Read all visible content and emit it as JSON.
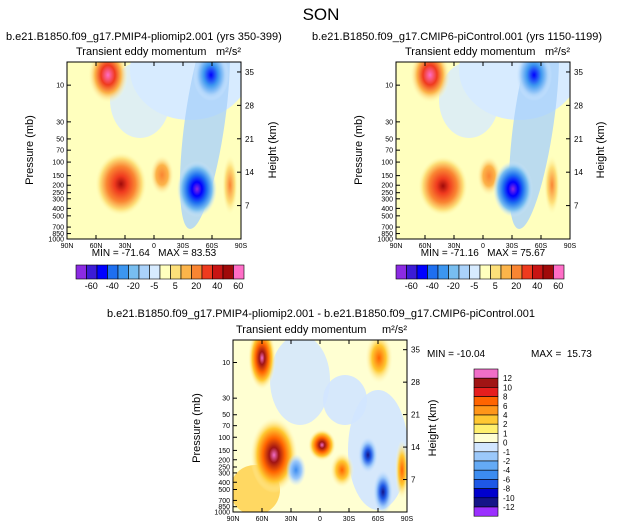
{
  "figure_title": "SON",
  "chart_data": [
    {
      "type": "heatmap",
      "case_title": "b.e21.B1850.f09_g17.PMIP4-pliomip2.001 (yrs 350-399)",
      "title_left": "Transient eddy momentum",
      "title_right": "m²/s²",
      "ylabel": "Pressure (mb)",
      "ylabel_right": "Height (km)",
      "x_ticks": [
        "90N",
        "60N",
        "30N",
        "0",
        "30S",
        "60S",
        "90S"
      ],
      "y_ticks": [
        "10",
        "30",
        "50",
        "70",
        "100",
        "150",
        "200",
        "250",
        "300",
        "400",
        "500",
        "700",
        "850",
        "1000"
      ],
      "y_ticks_right": [
        "35",
        "28",
        "21",
        "14",
        "7"
      ],
      "stats": "MIN = -71.64   MAX = 83.53",
      "min": -71.64,
      "max": 83.53,
      "colorbar_ticks": [
        "-60",
        "-40",
        "-20",
        "-5",
        "5",
        "20",
        "40",
        "60"
      ],
      "xlim": [
        90,
        -90
      ],
      "ylim_mb": [
        1000,
        5
      ],
      "features": [
        {
          "lat": 50,
          "p": 10,
          "value": 80
        },
        {
          "lat": 40,
          "p": 200,
          "value": 75
        },
        {
          "lat": 5,
          "p": 180,
          "value": 25
        },
        {
          "lat": -40,
          "p": 250,
          "value": -70
        },
        {
          "lat": -45,
          "p": 10,
          "value": -60
        },
        {
          "lat": -70,
          "p": 200,
          "value": 20
        }
      ]
    },
    {
      "type": "heatmap",
      "case_title": "b.e21.B1850.f09_g17.CMIP6-piControl.001 (yrs 1150-1199)",
      "title_left": "Transient eddy momentum",
      "title_right": "m²/s²",
      "ylabel": "Pressure (mb)",
      "ylabel_right": "Height (km)",
      "x_ticks": [
        "90N",
        "60N",
        "30N",
        "0",
        "30S",
        "60S",
        "90S"
      ],
      "y_ticks": [
        "10",
        "30",
        "50",
        "70",
        "100",
        "150",
        "200",
        "250",
        "300",
        "400",
        "500",
        "700",
        "850",
        "1000"
      ],
      "y_ticks_right": [
        "35",
        "28",
        "21",
        "14",
        "7"
      ],
      "stats": "MIN = -71.16   MAX = 75.67",
      "min": -71.16,
      "max": 75.67,
      "colorbar_ticks": [
        "-60",
        "-40",
        "-20",
        "-5",
        "5",
        "20",
        "40",
        "60"
      ],
      "xlim": [
        90,
        -90
      ],
      "ylim_mb": [
        1000,
        5
      ],
      "features": [
        {
          "lat": 55,
          "p": 10,
          "value": 70
        },
        {
          "lat": 40,
          "p": 200,
          "value": 70
        },
        {
          "lat": 5,
          "p": 180,
          "value": 25
        },
        {
          "lat": -40,
          "p": 250,
          "value": -65
        },
        {
          "lat": -45,
          "p": 10,
          "value": -55
        },
        {
          "lat": -70,
          "p": 200,
          "value": 20
        }
      ]
    },
    {
      "type": "heatmap",
      "case_title": "b.e21.B1850.f09_g17.PMIP4-pliomip2.001 - b.e21.B1850.f09_g17.CMIP6-piControl.001",
      "title_left": "Transient eddy momentum",
      "title_right": "m²/s²",
      "ylabel": "Pressure (mb)",
      "ylabel_right": "Height (km)",
      "x_ticks": [
        "90N",
        "60N",
        "30N",
        "0",
        "30S",
        "60S",
        "90S"
      ],
      "y_ticks": [
        "10",
        "30",
        "50",
        "70",
        "100",
        "150",
        "200",
        "250",
        "300",
        "400",
        "500",
        "700",
        "850",
        "1000"
      ],
      "y_ticks_right": [
        "35",
        "28",
        "21",
        "14",
        "7"
      ],
      "stats_min": "MIN = -10.04",
      "stats_max": "MAX =  15.73",
      "min": -10.04,
      "max": 15.73,
      "colorbar_ticks": [
        "12",
        "10",
        "8",
        "6",
        "4",
        "2",
        "1",
        "0",
        "-1",
        "-2",
        "-4",
        "-6",
        "-8",
        "-10",
        "-12"
      ],
      "xlim": [
        90,
        -90
      ],
      "ylim_mb": [
        1000,
        5
      ],
      "features": [
        {
          "lat": 60,
          "p": 10,
          "value": 12
        },
        {
          "lat": 45,
          "p": 200,
          "value": 13
        },
        {
          "lat": 0,
          "p": 150,
          "value": 8
        },
        {
          "lat": -20,
          "p": 300,
          "value": 6
        },
        {
          "lat": -45,
          "p": 200,
          "value": -6
        },
        {
          "lat": -60,
          "p": 600,
          "value": -8
        },
        {
          "lat": -70,
          "p": 10,
          "value": 6
        }
      ]
    }
  ],
  "colors": {
    "abs_palette": [
      "#8b2be2",
      "#3c1bd6",
      "#0000ff",
      "#1e6ff0",
      "#3c96f0",
      "#78bef0",
      "#aad2fa",
      "#d7ebff",
      "#ffffbe",
      "#fde07a",
      "#fcb44a",
      "#fa8532",
      "#ef3a1e",
      "#c81414",
      "#a00a0a",
      "#ff6ec7"
    ],
    "diff_palette": [
      "#9b30ff",
      "#141488",
      "#0000cd",
      "#1e58e6",
      "#3c8cf0",
      "#64aaf5",
      "#9bc8fa",
      "#d2e6ff",
      "#ffffd2",
      "#fff06e",
      "#ffc832",
      "#ff9619",
      "#ff6400",
      "#e61e1e",
      "#a01414",
      "#f06ec8"
    ]
  }
}
